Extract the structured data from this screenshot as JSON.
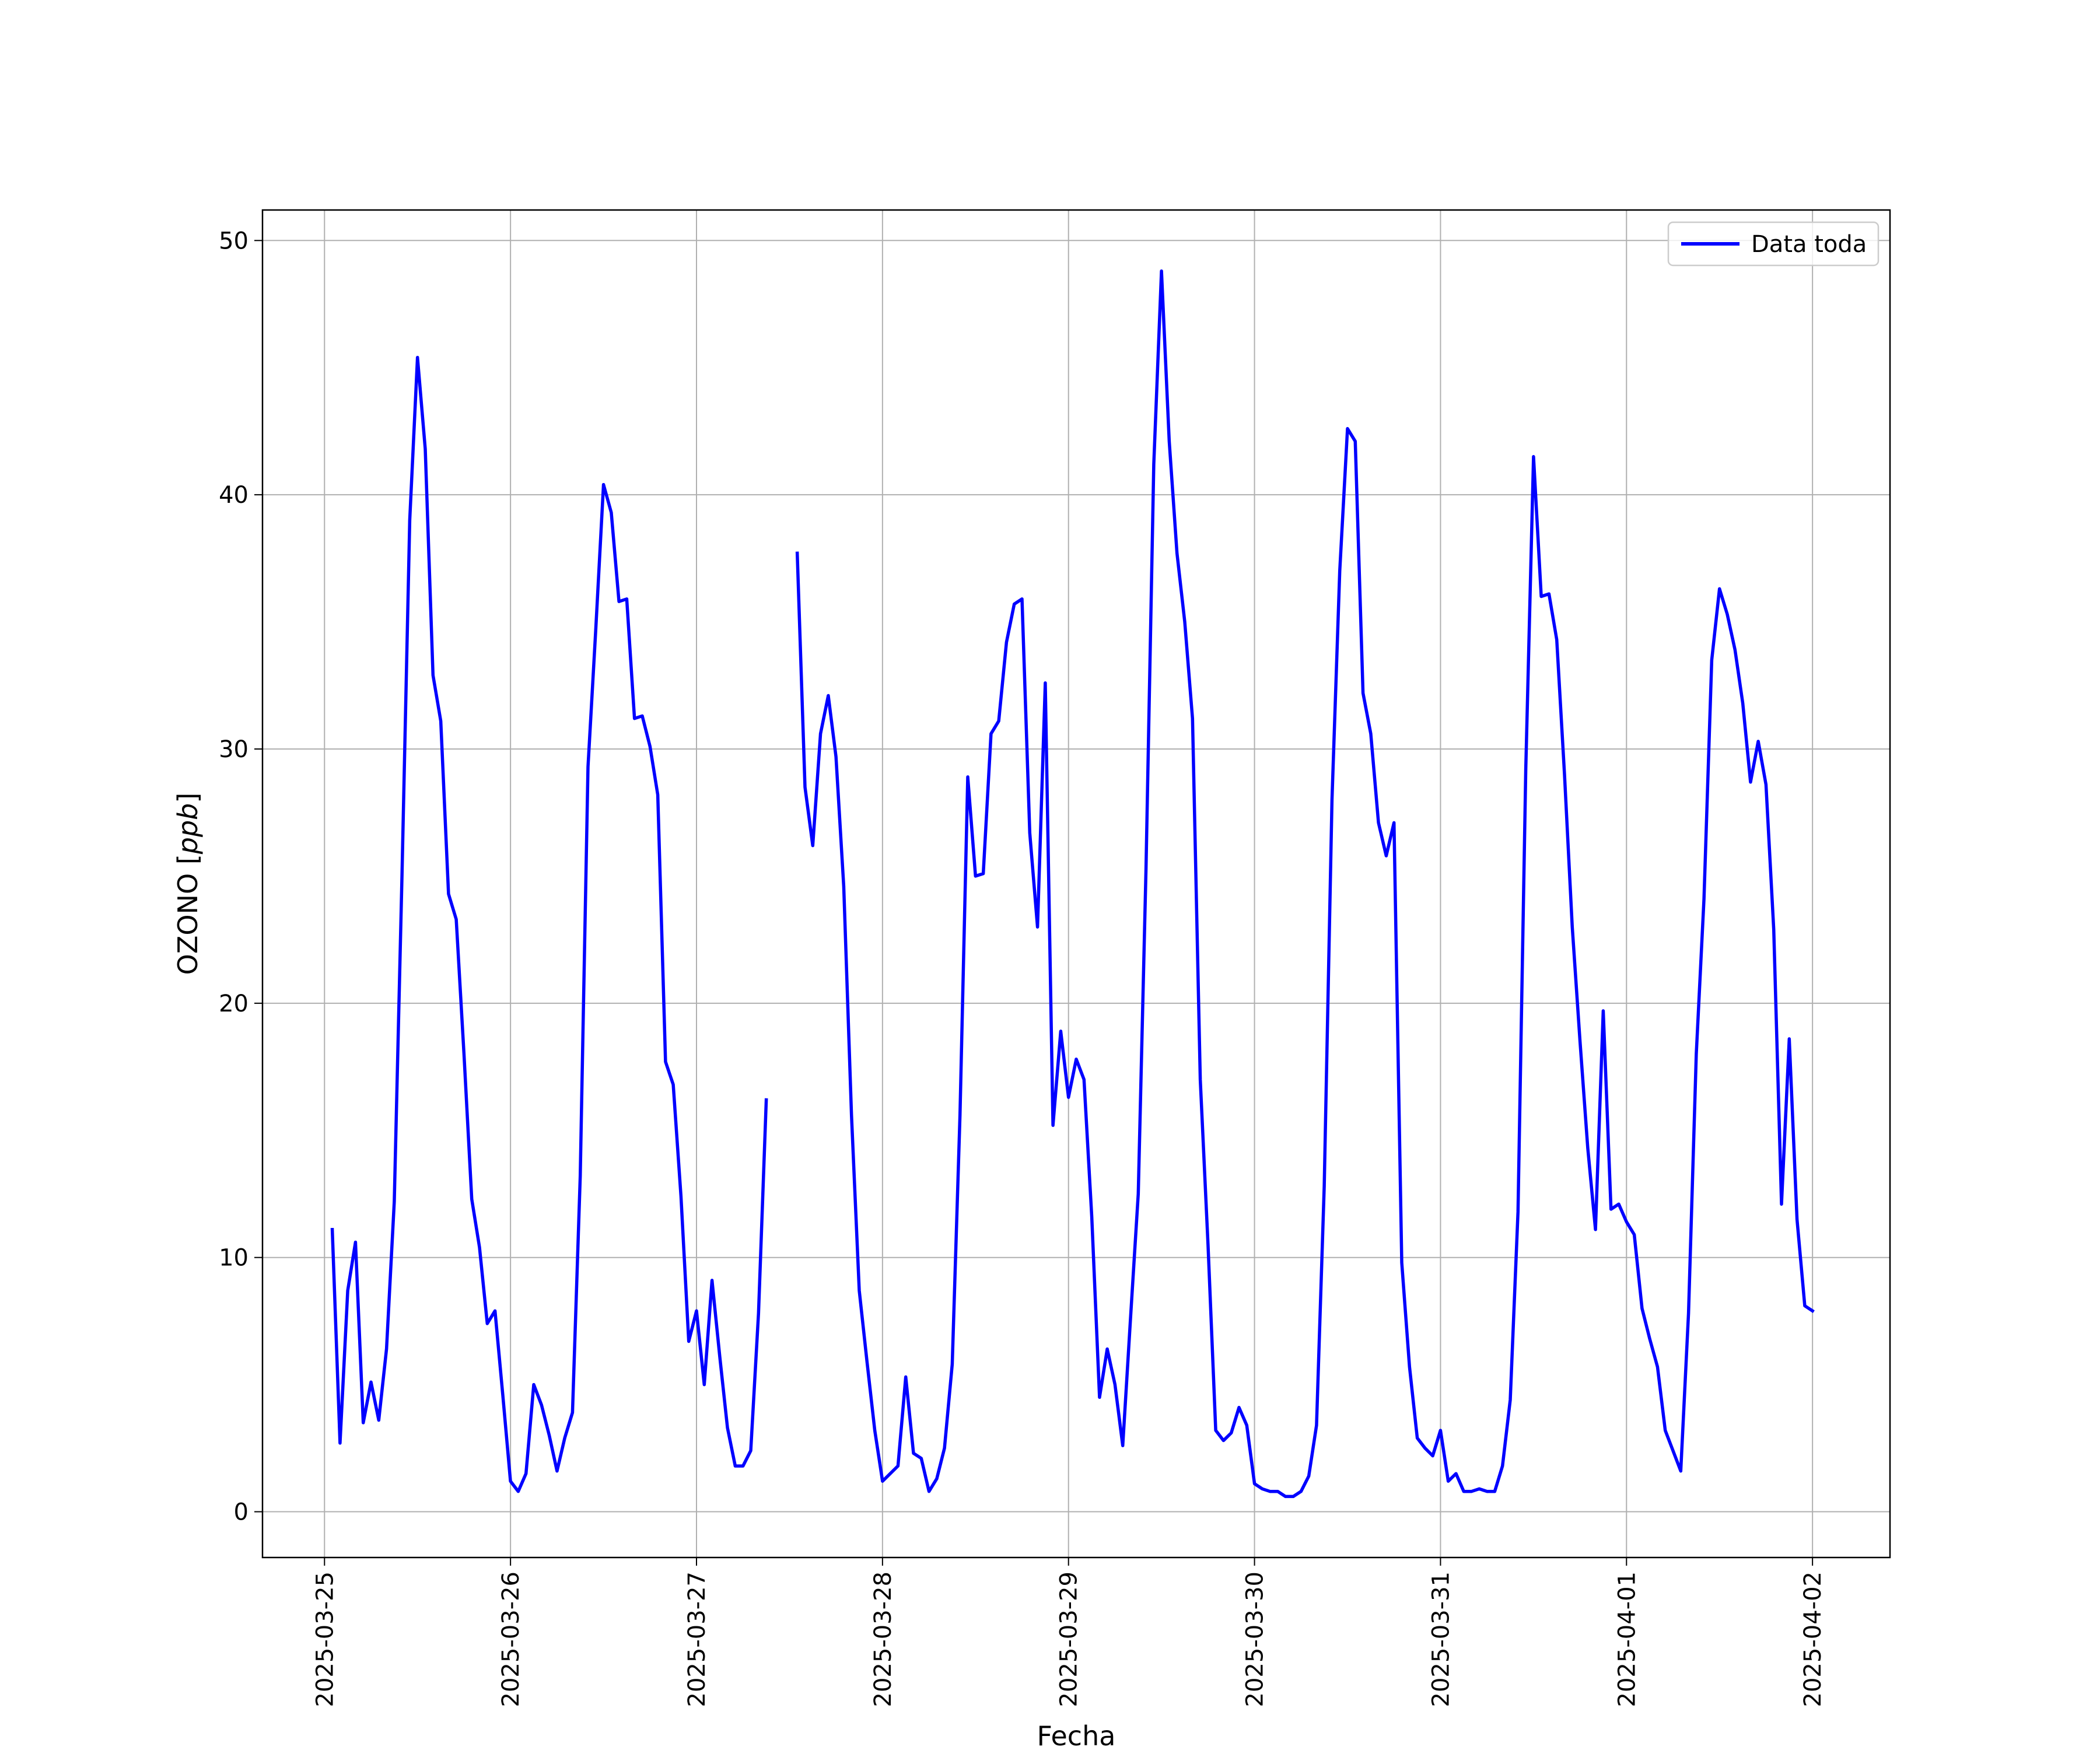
{
  "chart_data": {
    "type": "line",
    "xlabel": "Fecha",
    "ylabel": "OZONO [ppb]",
    "ylabel_parts": {
      "prefix": "OZONO [",
      "unit": "ppb",
      "suffix": "]"
    },
    "xlim": [
      "2025-03-24T16:00",
      "2025-04-02T10:00"
    ],
    "ylim": [
      -1.8,
      51.2
    ],
    "xticks": [
      "2025-03-25",
      "2025-03-26",
      "2025-03-27",
      "2025-03-28",
      "2025-03-29",
      "2025-03-30",
      "2025-03-31",
      "2025-04-01",
      "2025-04-02"
    ],
    "yticks": [
      0,
      10,
      20,
      30,
      40,
      50
    ],
    "grid": true,
    "legend_position": "top-right",
    "series": [
      {
        "name": "Data toda",
        "color": "#0000ff",
        "points": [
          [
            "2025-03-25T01:00",
            11.1
          ],
          [
            "2025-03-25T02:00",
            2.7
          ],
          [
            "2025-03-25T03:00",
            8.7
          ],
          [
            "2025-03-25T04:00",
            10.6
          ],
          [
            "2025-03-25T05:00",
            3.5
          ],
          [
            "2025-03-25T06:00",
            5.1
          ],
          [
            "2025-03-25T07:00",
            3.6
          ],
          [
            "2025-03-25T08:00",
            6.4
          ],
          [
            "2025-03-25T09:00",
            12.2
          ],
          [
            "2025-03-25T10:00",
            25.0
          ],
          [
            "2025-03-25T11:00",
            39.0
          ],
          [
            "2025-03-25T12:00",
            45.4
          ],
          [
            "2025-03-25T13:00",
            41.8
          ],
          [
            "2025-03-25T14:00",
            32.9
          ],
          [
            "2025-03-25T15:00",
            31.1
          ],
          [
            "2025-03-25T16:00",
            24.3
          ],
          [
            "2025-03-25T17:00",
            23.3
          ],
          [
            "2025-03-25T18:00",
            18.0
          ],
          [
            "2025-03-25T19:00",
            12.3
          ],
          [
            "2025-03-25T20:00",
            10.4
          ],
          [
            "2025-03-25T21:00",
            7.4
          ],
          [
            "2025-03-25T22:00",
            7.9
          ],
          [
            "2025-03-25T23:00",
            4.6
          ],
          [
            "2025-03-26T00:00",
            1.2
          ],
          [
            "2025-03-26T01:00",
            0.8
          ],
          [
            "2025-03-26T02:00",
            1.5
          ],
          [
            "2025-03-26T03:00",
            5.0
          ],
          [
            "2025-03-26T04:00",
            4.2
          ],
          [
            "2025-03-26T05:00",
            3.0
          ],
          [
            "2025-03-26T06:00",
            1.6
          ],
          [
            "2025-03-26T07:00",
            2.9
          ],
          [
            "2025-03-26T08:00",
            3.9
          ],
          [
            "2025-03-26T09:00",
            13.2
          ],
          [
            "2025-03-26T10:00",
            29.3
          ],
          [
            "2025-03-26T11:00",
            34.7
          ],
          [
            "2025-03-26T12:00",
            40.4
          ],
          [
            "2025-03-26T13:00",
            39.3
          ],
          [
            "2025-03-26T14:00",
            35.8
          ],
          [
            "2025-03-26T15:00",
            35.9
          ],
          [
            "2025-03-26T16:00",
            31.2
          ],
          [
            "2025-03-26T17:00",
            31.3
          ],
          [
            "2025-03-26T18:00",
            30.1
          ],
          [
            "2025-03-26T19:00",
            28.2
          ],
          [
            "2025-03-26T20:00",
            17.7
          ],
          [
            "2025-03-26T21:00",
            16.8
          ],
          [
            "2025-03-26T22:00",
            12.4
          ],
          [
            "2025-03-26T23:00",
            6.7
          ],
          [
            "2025-03-27T00:00",
            7.9
          ],
          [
            "2025-03-27T01:00",
            5.0
          ],
          [
            "2025-03-27T02:00",
            9.1
          ],
          [
            "2025-03-27T03:00",
            6.1
          ],
          [
            "2025-03-27T04:00",
            3.3
          ],
          [
            "2025-03-27T05:00",
            1.8
          ],
          [
            "2025-03-27T06:00",
            1.8
          ],
          [
            "2025-03-27T07:00",
            2.4
          ],
          [
            "2025-03-27T08:00",
            7.8
          ],
          [
            "2025-03-27T09:00",
            16.2
          ],
          null,
          [
            "2025-03-27T13:00",
            37.7
          ],
          [
            "2025-03-27T14:00",
            28.5
          ],
          [
            "2025-03-27T15:00",
            26.2
          ],
          [
            "2025-03-27T16:00",
            30.6
          ],
          [
            "2025-03-27T17:00",
            32.1
          ],
          [
            "2025-03-27T18:00",
            29.7
          ],
          [
            "2025-03-27T19:00",
            24.6
          ],
          [
            "2025-03-27T20:00",
            15.6
          ],
          [
            "2025-03-27T21:00",
            8.7
          ],
          [
            "2025-03-27T22:00",
            5.9
          ],
          [
            "2025-03-27T23:00",
            3.2
          ],
          [
            "2025-03-28T00:00",
            1.2
          ],
          [
            "2025-03-28T01:00",
            1.5
          ],
          [
            "2025-03-28T02:00",
            1.8
          ],
          [
            "2025-03-28T03:00",
            5.3
          ],
          [
            "2025-03-28T04:00",
            2.3
          ],
          [
            "2025-03-28T05:00",
            2.1
          ],
          [
            "2025-03-28T06:00",
            0.8
          ],
          [
            "2025-03-28T07:00",
            1.3
          ],
          [
            "2025-03-28T08:00",
            2.5
          ],
          [
            "2025-03-28T09:00",
            5.8
          ],
          [
            "2025-03-28T10:00",
            15.6
          ],
          [
            "2025-03-28T11:00",
            28.9
          ],
          [
            "2025-03-28T12:00",
            25.0
          ],
          [
            "2025-03-28T13:00",
            25.1
          ],
          [
            "2025-03-28T14:00",
            30.6
          ],
          [
            "2025-03-28T15:00",
            31.1
          ],
          [
            "2025-03-28T16:00",
            34.2
          ],
          [
            "2025-03-28T17:00",
            35.7
          ],
          [
            "2025-03-28T18:00",
            35.9
          ],
          [
            "2025-03-28T19:00",
            26.7
          ],
          [
            "2025-03-28T20:00",
            23.0
          ],
          [
            "2025-03-28T21:00",
            32.6
          ],
          [
            "2025-03-28T22:00",
            15.2
          ],
          [
            "2025-03-28T23:00",
            18.9
          ],
          [
            "2025-03-29T00:00",
            16.3
          ],
          [
            "2025-03-29T01:00",
            17.8
          ],
          [
            "2025-03-29T02:00",
            17.0
          ],
          [
            "2025-03-29T03:00",
            11.6
          ],
          [
            "2025-03-29T04:00",
            4.5
          ],
          [
            "2025-03-29T05:00",
            6.4
          ],
          [
            "2025-03-29T06:00",
            5.0
          ],
          [
            "2025-03-29T07:00",
            2.6
          ],
          [
            "2025-03-29T08:00",
            7.6
          ],
          [
            "2025-03-29T09:00",
            12.5
          ],
          [
            "2025-03-29T10:00",
            25.3
          ],
          [
            "2025-03-29T11:00",
            41.2
          ],
          [
            "2025-03-29T12:00",
            48.8
          ],
          [
            "2025-03-29T13:00",
            42.1
          ],
          [
            "2025-03-29T14:00",
            37.7
          ],
          [
            "2025-03-29T15:00",
            35.0
          ],
          [
            "2025-03-29T16:00",
            31.2
          ],
          [
            "2025-03-29T17:00",
            17.0
          ],
          [
            "2025-03-29T18:00",
            10.5
          ],
          [
            "2025-03-29T19:00",
            3.2
          ],
          [
            "2025-03-29T20:00",
            2.8
          ],
          [
            "2025-03-29T21:00",
            3.1
          ],
          [
            "2025-03-29T22:00",
            4.1
          ],
          [
            "2025-03-29T23:00",
            3.4
          ],
          [
            "2025-03-30T00:00",
            1.1
          ],
          [
            "2025-03-30T01:00",
            0.9
          ],
          [
            "2025-03-30T02:00",
            0.8
          ],
          [
            "2025-03-30T03:00",
            0.8
          ],
          [
            "2025-03-30T04:00",
            0.6
          ],
          [
            "2025-03-30T05:00",
            0.6
          ],
          [
            "2025-03-30T06:00",
            0.8
          ],
          [
            "2025-03-30T07:00",
            1.4
          ],
          [
            "2025-03-30T08:00",
            3.4
          ],
          [
            "2025-03-30T09:00",
            12.8
          ],
          [
            "2025-03-30T10:00",
            28.0
          ],
          [
            "2025-03-30T11:00",
            37.0
          ],
          [
            "2025-03-30T12:00",
            42.6
          ],
          [
            "2025-03-30T13:00",
            42.1
          ],
          [
            "2025-03-30T14:00",
            32.2
          ],
          [
            "2025-03-30T15:00",
            30.6
          ],
          [
            "2025-03-30T16:00",
            27.1
          ],
          [
            "2025-03-30T17:00",
            25.8
          ],
          [
            "2025-03-30T18:00",
            27.1
          ],
          [
            "2025-03-30T19:00",
            9.8
          ],
          [
            "2025-03-30T20:00",
            5.7
          ],
          [
            "2025-03-30T21:00",
            2.9
          ],
          [
            "2025-03-30T22:00",
            2.5
          ],
          [
            "2025-03-30T23:00",
            2.2
          ],
          [
            "2025-03-31T00:00",
            3.2
          ],
          [
            "2025-03-31T01:00",
            1.2
          ],
          [
            "2025-03-31T02:00",
            1.5
          ],
          [
            "2025-03-31T03:00",
            0.8
          ],
          [
            "2025-03-31T04:00",
            0.8
          ],
          [
            "2025-03-31T05:00",
            0.9
          ],
          [
            "2025-03-31T06:00",
            0.8
          ],
          [
            "2025-03-31T07:00",
            0.8
          ],
          [
            "2025-03-31T08:00",
            1.8
          ],
          [
            "2025-03-31T09:00",
            4.4
          ],
          [
            "2025-03-31T10:00",
            11.8
          ],
          [
            "2025-03-31T11:00",
            29.2
          ],
          [
            "2025-03-31T12:00",
            41.5
          ],
          [
            "2025-03-31T13:00",
            36.0
          ],
          [
            "2025-03-31T14:00",
            36.1
          ],
          [
            "2025-03-31T15:00",
            34.3
          ],
          [
            "2025-03-31T16:00",
            29.0
          ],
          [
            "2025-03-31T17:00",
            23.0
          ],
          [
            "2025-03-31T18:00",
            18.5
          ],
          [
            "2025-03-31T19:00",
            14.3
          ],
          [
            "2025-03-31T20:00",
            11.1
          ],
          [
            "2025-03-31T21:00",
            19.7
          ],
          [
            "2025-03-31T22:00",
            11.9
          ],
          [
            "2025-03-31T23:00",
            12.1
          ],
          [
            "2025-04-01T00:00",
            11.4
          ],
          [
            "2025-04-01T01:00",
            10.9
          ],
          [
            "2025-04-01T02:00",
            8.0
          ],
          [
            "2025-04-01T03:00",
            6.8
          ],
          [
            "2025-04-01T04:00",
            5.7
          ],
          [
            "2025-04-01T05:00",
            3.2
          ],
          [
            "2025-04-01T06:00",
            2.4
          ],
          [
            "2025-04-01T07:00",
            1.6
          ],
          [
            "2025-04-01T08:00",
            7.8
          ],
          [
            "2025-04-01T09:00",
            18.0
          ],
          [
            "2025-04-01T10:00",
            24.1
          ],
          [
            "2025-04-01T11:00",
            33.5
          ],
          [
            "2025-04-01T12:00",
            36.3
          ],
          [
            "2025-04-01T13:00",
            35.3
          ],
          [
            "2025-04-01T14:00",
            33.9
          ],
          [
            "2025-04-01T15:00",
            31.8
          ],
          [
            "2025-04-01T16:00",
            28.7
          ],
          [
            "2025-04-01T17:00",
            30.3
          ],
          [
            "2025-04-01T18:00",
            28.6
          ],
          [
            "2025-04-01T19:00",
            22.9
          ],
          [
            "2025-04-01T20:00",
            12.1
          ],
          [
            "2025-04-01T21:00",
            18.6
          ],
          [
            "2025-04-01T22:00",
            11.5
          ],
          [
            "2025-04-01T23:00",
            8.1
          ],
          [
            "2025-04-02T00:00",
            7.9
          ]
        ]
      }
    ]
  }
}
